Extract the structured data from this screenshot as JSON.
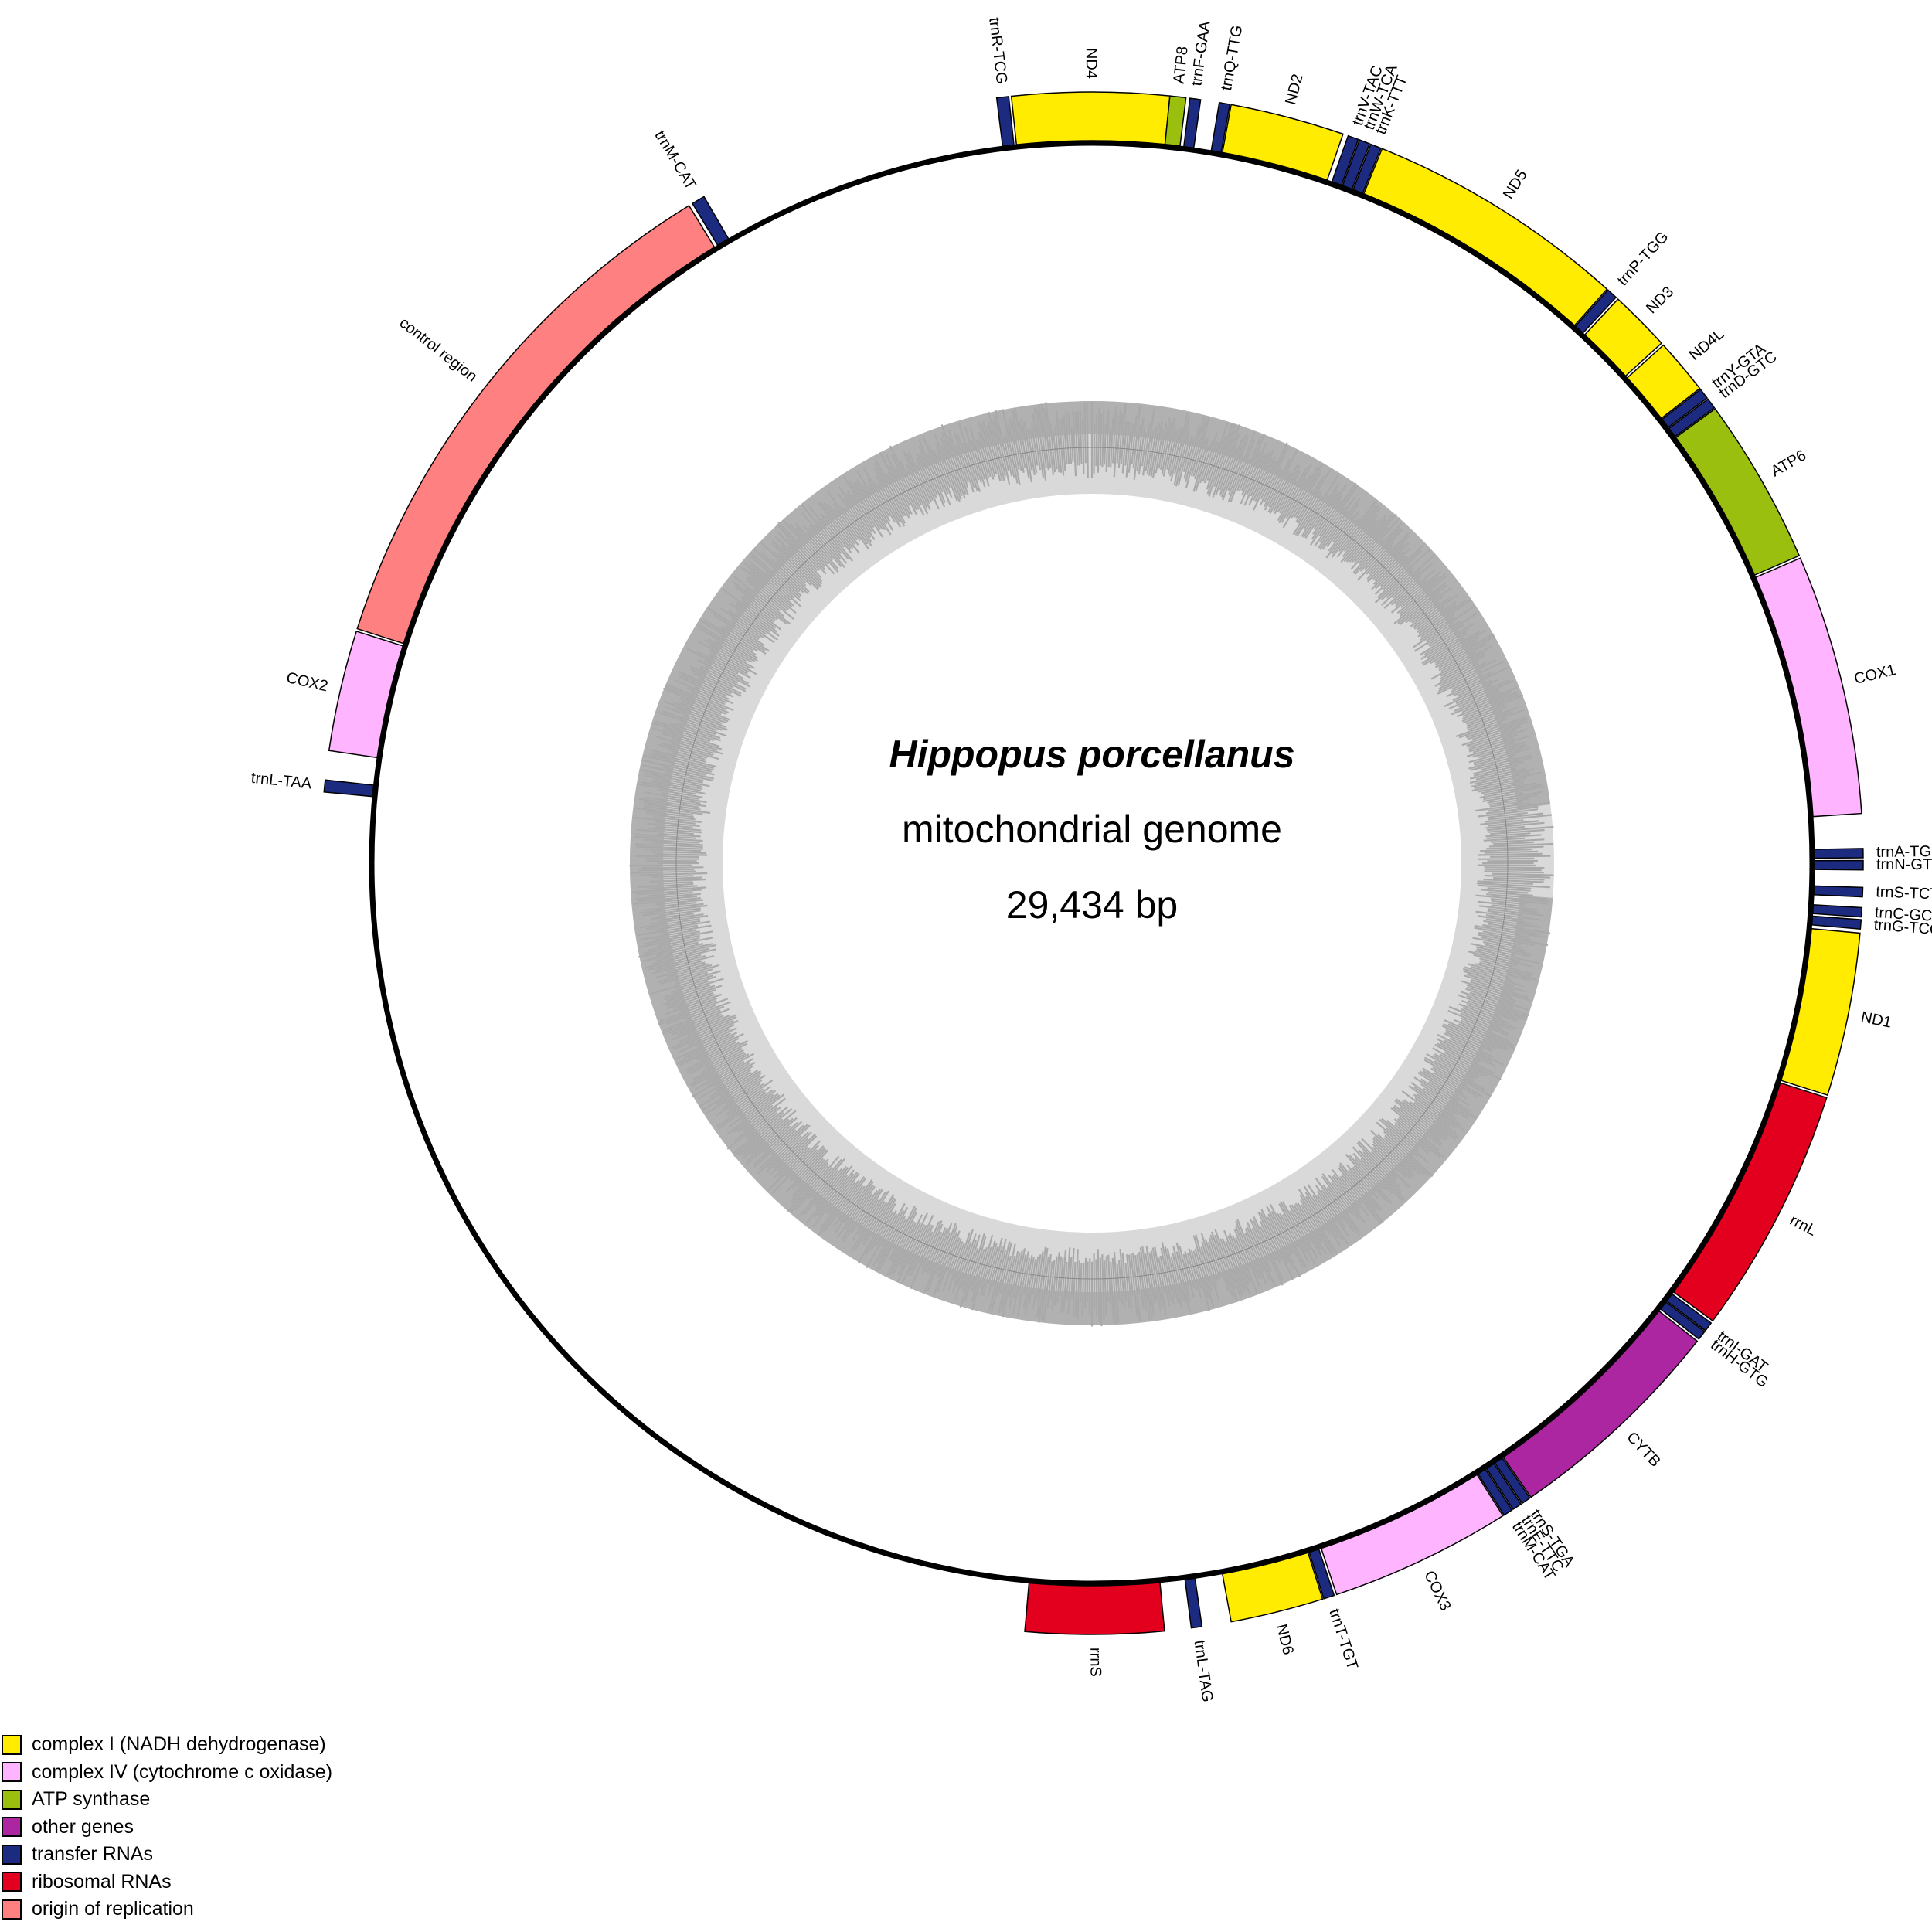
{
  "title": {
    "species": "Hippopus porcellanus",
    "subtitle": "mitochondrial genome",
    "length": "29,434 bp"
  },
  "colors": {
    "complex_I": "#ffec00",
    "complex_IV": "#ffb4ff",
    "atp_synthase": "#9bbf0f",
    "other_genes": "#ad26a1",
    "trna": "#1c2a80",
    "rrna": "#e2001e",
    "origin": "#ff8080",
    "gc_dark": "#a9a9a9",
    "gc_light": "#d9d9d9"
  },
  "legend": [
    {
      "label": "complex I (NADH dehydrogenase)",
      "category": "complex_I"
    },
    {
      "label": "complex IV (cytochrome c oxidase)",
      "category": "complex_IV"
    },
    {
      "label": "ATP synthase",
      "category": "atp_synthase"
    },
    {
      "label": "other genes",
      "category": "other_genes"
    },
    {
      "label": "transfer RNAs",
      "category": "trna"
    },
    {
      "label": "ribosomal RNAs",
      "category": "rrna"
    },
    {
      "label": "origin of replication",
      "category": "origin"
    }
  ],
  "genes": [
    {
      "name": "trnR-TCG",
      "category": "trna",
      "strand": "outer",
      "start_deg": 352.9,
      "end_deg": 353.8
    },
    {
      "name": "ND4",
      "category": "complex_I",
      "strand": "outer",
      "start_deg": 354.0,
      "end_deg": 5.8
    },
    {
      "name": "ATP8",
      "category": "atp_synthase",
      "strand": "outer",
      "start_deg": 5.8,
      "end_deg": 7.0
    },
    {
      "name": "trnF-GAA",
      "category": "trna",
      "strand": "outer",
      "start_deg": 7.3,
      "end_deg": 8.1
    },
    {
      "name": "trnQ-TTG",
      "category": "trna",
      "strand": "outer",
      "start_deg": 9.5,
      "end_deg": 10.3
    },
    {
      "name": "ND2",
      "category": "complex_I",
      "strand": "outer",
      "start_deg": 10.4,
      "end_deg": 19.0
    },
    {
      "name": "trnV-TAC",
      "category": "trna",
      "strand": "outer",
      "start_deg": 19.4,
      "end_deg": 20.2
    },
    {
      "name": "trnW-TCA",
      "category": "trna",
      "strand": "outer",
      "start_deg": 20.3,
      "end_deg": 21.1
    },
    {
      "name": "trnK-TTT",
      "category": "trna",
      "strand": "outer",
      "start_deg": 21.2,
      "end_deg": 22.0
    },
    {
      "name": "ND5",
      "category": "complex_I",
      "strand": "outer",
      "start_deg": 22.1,
      "end_deg": 41.9
    },
    {
      "name": "trnP-TGG",
      "category": "trna",
      "strand": "outer",
      "start_deg": 42.0,
      "end_deg": 42.8
    },
    {
      "name": "ND3",
      "category": "complex_I",
      "strand": "outer",
      "start_deg": 43.0,
      "end_deg": 47.6
    },
    {
      "name": "ND4L",
      "category": "complex_I",
      "strand": "outer",
      "start_deg": 47.8,
      "end_deg": 52.0
    },
    {
      "name": "trnY-GTA",
      "category": "trna",
      "strand": "outer",
      "start_deg": 52.1,
      "end_deg": 52.9
    },
    {
      "name": "trnD-GTC",
      "category": "trna",
      "strand": "outer",
      "start_deg": 53.0,
      "end_deg": 53.8
    },
    {
      "name": "ATP6",
      "category": "atp_synthase",
      "strand": "outer",
      "start_deg": 53.9,
      "end_deg": 66.5
    },
    {
      "name": "COX1",
      "category": "complex_IV",
      "strand": "outer",
      "start_deg": 66.7,
      "end_deg": 86.3
    },
    {
      "name": "trnA-TGC",
      "category": "trna",
      "strand": "outer",
      "start_deg": 88.9,
      "end_deg": 89.6
    },
    {
      "name": "trnN-GTT",
      "category": "trna",
      "strand": "outer",
      "start_deg": 89.8,
      "end_deg": 90.5
    },
    {
      "name": "trnS-TCT",
      "category": "trna",
      "strand": "outer",
      "start_deg": 91.8,
      "end_deg": 92.5
    },
    {
      "name": "trnC-GCA",
      "category": "trna",
      "strand": "outer",
      "start_deg": 93.3,
      "end_deg": 94.0
    },
    {
      "name": "trnG-TCC",
      "category": "trna",
      "strand": "outer",
      "start_deg": 94.2,
      "end_deg": 94.9
    },
    {
      "name": "ND1",
      "category": "complex_I",
      "strand": "outer",
      "start_deg": 95.2,
      "end_deg": 107.5
    },
    {
      "name": "rrnL",
      "category": "rrna",
      "strand": "outer",
      "start_deg": 107.7,
      "end_deg": 126.4
    },
    {
      "name": "trnI-GAT",
      "category": "trna",
      "strand": "outer",
      "start_deg": 126.6,
      "end_deg": 127.3
    },
    {
      "name": "trnH-GTG",
      "category": "trna",
      "strand": "outer",
      "start_deg": 127.4,
      "end_deg": 128.1
    },
    {
      "name": "CYTB",
      "category": "other_genes",
      "strand": "outer",
      "start_deg": 128.3,
      "end_deg": 145.3
    },
    {
      "name": "trnS-TGA",
      "category": "trna",
      "strand": "outer",
      "start_deg": 145.4,
      "end_deg": 146.1
    },
    {
      "name": "trnE-TTC",
      "category": "trna",
      "strand": "outer",
      "start_deg": 146.2,
      "end_deg": 146.9
    },
    {
      "name": "trnM-CAT",
      "category": "trna",
      "strand": "outer",
      "start_deg": 147.0,
      "end_deg": 147.7
    },
    {
      "name": "COX3",
      "category": "complex_IV",
      "strand": "outer",
      "start_deg": 147.8,
      "end_deg": 161.5
    },
    {
      "name": "trnT-TGT",
      "category": "trna",
      "strand": "outer",
      "start_deg": 161.7,
      "end_deg": 162.5
    },
    {
      "name": "ND6",
      "category": "complex_I",
      "strand": "outer",
      "start_deg": 162.6,
      "end_deg": 169.6
    },
    {
      "name": "trnL-TAG",
      "category": "trna",
      "strand": "outer",
      "start_deg": 171.8,
      "end_deg": 172.6
    },
    {
      "name": "rrnS",
      "category": "rrna",
      "strand": "outer",
      "start_deg": 174.6,
      "end_deg": 185.0
    },
    {
      "name": "trnL-TAA",
      "category": "trna",
      "strand": "outer",
      "start_deg": 275.3,
      "end_deg": 276.2
    },
    {
      "name": "COX2",
      "category": "complex_IV",
      "strand": "outer",
      "start_deg": 278.4,
      "end_deg": 287.5
    },
    {
      "name": "control region",
      "category": "origin",
      "strand": "outer",
      "start_deg": 287.7,
      "end_deg": 328.5
    },
    {
      "name": "trnM-CAT",
      "category": "trna",
      "strand": "outer",
      "start_deg": 328.8,
      "end_deg": 329.8
    }
  ]
}
